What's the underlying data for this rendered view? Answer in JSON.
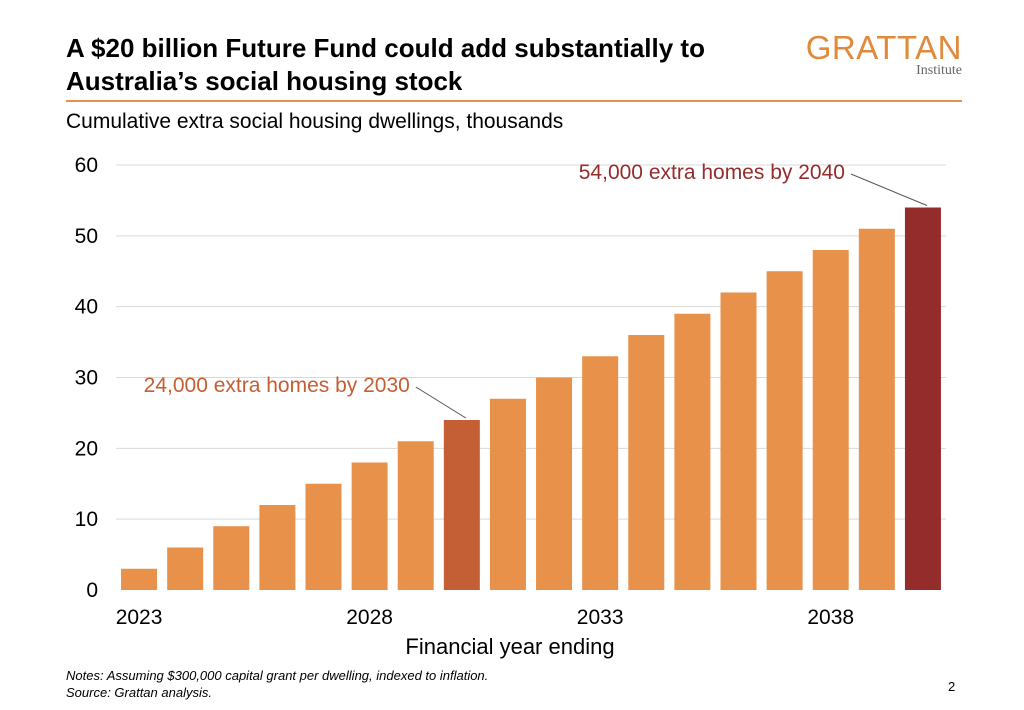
{
  "title": "A $20 billion Future Fund could add substantially to Australia’s social housing stock",
  "logo": {
    "word": "GRATTAN",
    "sub": "Institute"
  },
  "subtitle": "Cumulative extra social housing dwellings, thousands",
  "notes": {
    "line1": "Notes: Assuming $300,000 capital grant per dwelling, indexed to inflation.",
    "line2": "Source: Grattan analysis."
  },
  "page_number": "2",
  "colors": {
    "bar": "#e8914b",
    "highlight_2030": "#c45e34",
    "highlight_2040": "#952c2c",
    "rule": "#e8914b",
    "grid": "#d9d9d9"
  },
  "chart_data": {
    "type": "bar",
    "x": [
      2023,
      2024,
      2025,
      2026,
      2027,
      2028,
      2029,
      2030,
      2031,
      2032,
      2033,
      2034,
      2035,
      2036,
      2037,
      2038,
      2039,
      2040
    ],
    "values": [
      3,
      6,
      9,
      12,
      15,
      18,
      21,
      24,
      27,
      30,
      33,
      36,
      39,
      42,
      45,
      48,
      51,
      54
    ],
    "xlabel": "Financial year ending",
    "ylabel": "",
    "ylim": [
      0,
      60
    ],
    "yticks": [
      0,
      10,
      20,
      30,
      40,
      50,
      60
    ],
    "xtick_labels": [
      {
        "x": 2023,
        "label": "2023"
      },
      {
        "x": 2028,
        "label": "2028"
      },
      {
        "x": 2033,
        "label": "2033"
      },
      {
        "x": 2038,
        "label": "2038"
      }
    ],
    "grid": true,
    "highlights": [
      {
        "x": 2030,
        "color_key": "highlight_2030"
      },
      {
        "x": 2040,
        "color_key": "highlight_2040"
      }
    ],
    "annotations": [
      {
        "x": 2030,
        "value": 24,
        "text": "24,000 extra homes by 2030",
        "color_key": "highlight_2030"
      },
      {
        "x": 2040,
        "value": 54,
        "text": "54,000 extra homes by 2040",
        "color_key": "highlight_2040"
      }
    ]
  }
}
